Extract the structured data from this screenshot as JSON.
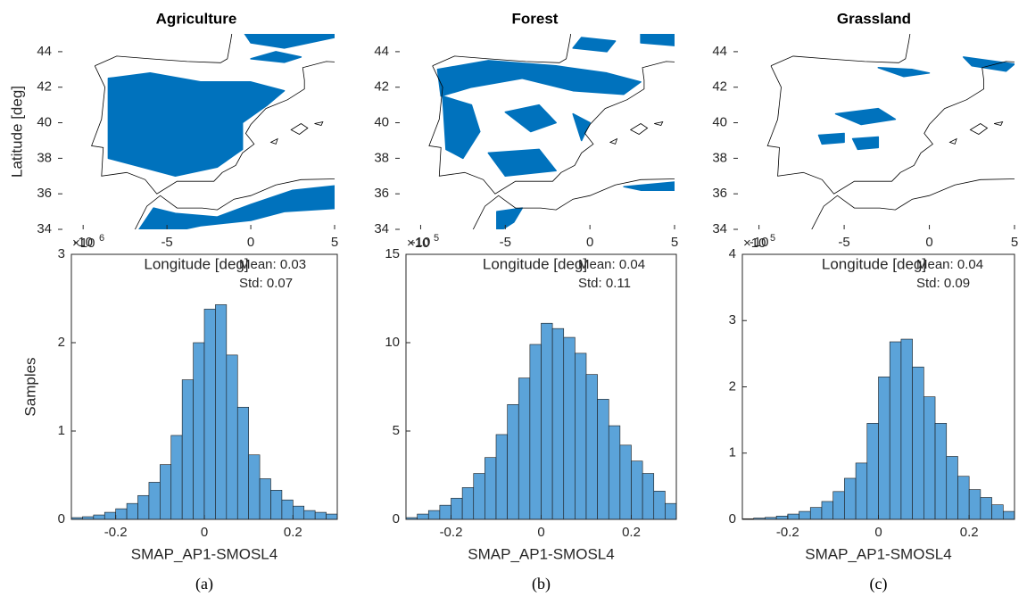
{
  "chart_data": [
    {
      "type": "map",
      "title": "Agriculture",
      "xlabel": "Longitude [deg]",
      "ylabel": "Latitude [deg]",
      "xlim": [
        -11.5,
        5
      ],
      "ylim": [
        34,
        45
      ],
      "xticks": [
        -10,
        -5,
        0,
        5
      ],
      "yticks": [
        34,
        36,
        38,
        40,
        42,
        44
      ],
      "color": "#0072bd"
    },
    {
      "type": "map",
      "title": "Forest",
      "xlabel": "Longitude [deg]",
      "xlim": [
        -11.5,
        5
      ],
      "ylim": [
        34,
        45
      ],
      "xticks": [
        -10,
        -5,
        0,
        5
      ],
      "yticks": [
        34,
        36,
        38,
        40,
        42,
        44
      ],
      "color": "#0072bd"
    },
    {
      "type": "map",
      "title": "Grassland",
      "xlabel": "Longitude [deg]",
      "xlim": [
        -11.5,
        5
      ],
      "ylim": [
        34,
        45
      ],
      "xticks": [
        -10,
        -5,
        0,
        5
      ],
      "yticks": [
        34,
        36,
        38,
        40,
        42,
        44
      ],
      "color": "#0072bd"
    },
    {
      "type": "histogram",
      "xlabel": "SMAP_AP1-SMOSL4",
      "ylabel": "Samples",
      "panel_label": "(a)",
      "bins": [
        -0.3,
        -0.275,
        -0.25,
        -0.225,
        -0.2,
        -0.175,
        -0.15,
        -0.125,
        -0.1,
        -0.075,
        -0.05,
        -0.025,
        0,
        0.025,
        0.05,
        0.075,
        0.1,
        0.125,
        0.15,
        0.175,
        0.2,
        0.225,
        0.25,
        0.275,
        0.3
      ],
      "values": [
        0.02,
        0.03,
        0.05,
        0.08,
        0.12,
        0.18,
        0.27,
        0.42,
        0.62,
        0.95,
        1.58,
        2.0,
        2.38,
        2.43,
        1.86,
        1.27,
        0.73,
        0.46,
        0.33,
        0.22,
        0.15,
        0.1,
        0.08,
        0.06
      ],
      "color": "#5ba3d9",
      "xlim": [
        -0.3,
        0.3
      ],
      "xticks": [
        -0.2,
        0,
        0.2
      ],
      "ylim": [
        0,
        3
      ],
      "yticks": [
        0,
        1,
        2,
        3
      ],
      "y_multiplier": {
        "base": "×10",
        "power": "6"
      },
      "annotations": [
        "Mean: 0.03",
        "Std: 0.07"
      ]
    },
    {
      "type": "histogram",
      "xlabel": "SMAP_AP1-SMOSL4",
      "panel_label": "(b)",
      "bins": [
        -0.3,
        -0.275,
        -0.25,
        -0.225,
        -0.2,
        -0.175,
        -0.15,
        -0.125,
        -0.1,
        -0.075,
        -0.05,
        -0.025,
        0,
        0.025,
        0.05,
        0.075,
        0.1,
        0.125,
        0.15,
        0.175,
        0.2,
        0.225,
        0.25,
        0.275,
        0.3
      ],
      "values": [
        0.1,
        0.3,
        0.5,
        0.8,
        1.2,
        1.8,
        2.6,
        3.5,
        4.8,
        6.5,
        8.0,
        9.9,
        11.1,
        10.8,
        10.3,
        9.4,
        8.2,
        6.8,
        5.3,
        4.2,
        3.3,
        2.6,
        1.6,
        0.9
      ],
      "color": "#5ba3d9",
      "xlim": [
        -0.3,
        0.3
      ],
      "xticks": [
        -0.2,
        0,
        0.2
      ],
      "ylim": [
        0,
        15
      ],
      "yticks": [
        0,
        5,
        10,
        15
      ],
      "y_multiplier": {
        "base": "×10",
        "power": "5"
      },
      "annotations": [
        "Mean: 0.04",
        "Std: 0.11"
      ]
    },
    {
      "type": "histogram",
      "xlabel": "SMAP_AP1-SMOSL4",
      "panel_label": "(c)",
      "bins": [
        -0.3,
        -0.275,
        -0.25,
        -0.225,
        -0.2,
        -0.175,
        -0.15,
        -0.125,
        -0.1,
        -0.075,
        -0.05,
        -0.025,
        0,
        0.025,
        0.05,
        0.075,
        0.1,
        0.125,
        0.15,
        0.175,
        0.2,
        0.225,
        0.25,
        0.275,
        0.3
      ],
      "values": [
        0.01,
        0.02,
        0.03,
        0.05,
        0.08,
        0.12,
        0.18,
        0.27,
        0.42,
        0.62,
        0.85,
        1.45,
        2.15,
        2.68,
        2.72,
        2.3,
        1.85,
        1.45,
        0.95,
        0.65,
        0.45,
        0.33,
        0.22,
        0.12
      ],
      "color": "#5ba3d9",
      "xlim": [
        -0.3,
        0.3
      ],
      "xticks": [
        -0.2,
        0,
        0.2
      ],
      "ylim": [
        0,
        4
      ],
      "yticks": [
        0,
        1,
        2,
        3,
        4
      ],
      "y_multiplier": {
        "base": "×10",
        "power": "5"
      },
      "annotations": [
        "Mean: 0.04",
        "Std: 0.09"
      ]
    }
  ]
}
